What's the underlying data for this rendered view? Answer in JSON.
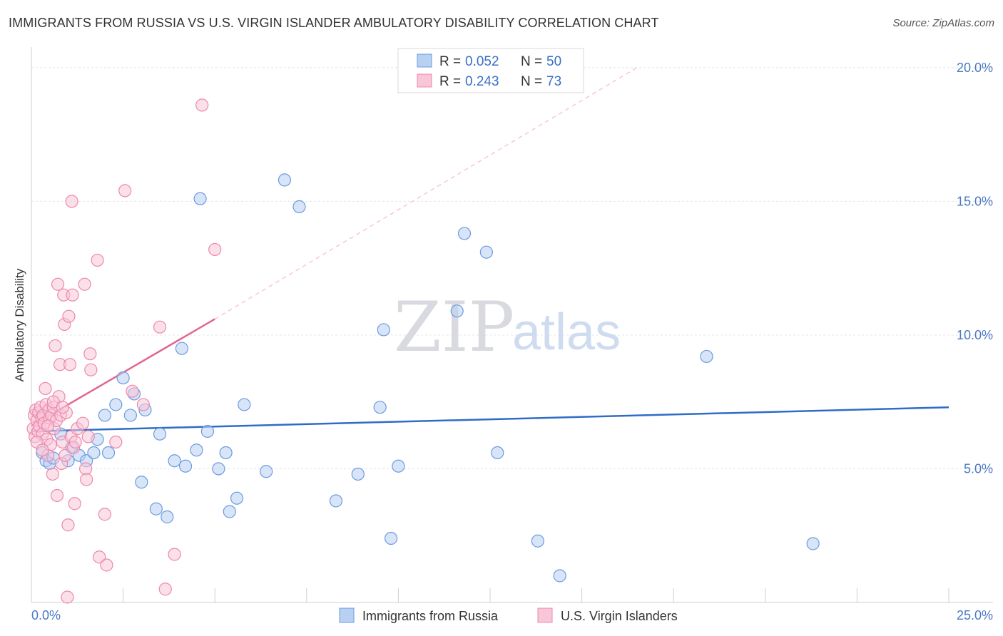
{
  "title": "IMMIGRANTS FROM RUSSIA VS U.S. VIRGIN ISLANDER AMBULATORY DISABILITY CORRELATION CHART",
  "source": "Source: ZipAtlas.com",
  "watermark": {
    "zip": "ZIP",
    "atlas": "atlas"
  },
  "chart_data": {
    "type": "scatter",
    "title": "IMMIGRANTS FROM RUSSIA VS U.S. VIRGIN ISLANDER AMBULATORY DISABILITY CORRELATION CHART",
    "xlabel": "",
    "ylabel": "Ambulatory Disability",
    "xlim": [
      0,
      25
    ],
    "ylim": [
      0,
      20
    ],
    "x_tick_labels": [
      "0.0%",
      "25.0%"
    ],
    "y_ticks": [
      5,
      10,
      15,
      20
    ],
    "y_tick_labels": [
      "5.0%",
      "10.0%",
      "15.0%",
      "20.0%"
    ],
    "grid": true,
    "legend_placement": "top-center",
    "legend": [
      {
        "r_label": "R =",
        "r_value": "0.052",
        "n_label": "N =",
        "n_value": "50"
      },
      {
        "r_label": "R =",
        "r_value": "0.243",
        "n_label": "N =",
        "n_value": "73"
      }
    ],
    "series": [
      {
        "name": "Immigrants from Russia",
        "color": "#6b9be0",
        "fill": "#b8d0f2",
        "line_color": "#2f6cc7",
        "trend": {
          "x": [
            0,
            25
          ],
          "y": [
            6.4,
            7.3
          ]
        },
        "points": [
          {
            "x": 0.3,
            "y": 5.6
          },
          {
            "x": 0.4,
            "y": 5.3
          },
          {
            "x": 0.5,
            "y": 5.2
          },
          {
            "x": 0.6,
            "y": 5.4
          },
          {
            "x": 0.8,
            "y": 6.3
          },
          {
            "x": 1.0,
            "y": 5.3
          },
          {
            "x": 1.1,
            "y": 5.8
          },
          {
            "x": 1.3,
            "y": 5.5
          },
          {
            "x": 1.5,
            "y": 5.3
          },
          {
            "x": 1.7,
            "y": 5.6
          },
          {
            "x": 1.8,
            "y": 6.1
          },
          {
            "x": 2.0,
            "y": 7.0
          },
          {
            "x": 2.1,
            "y": 5.6
          },
          {
            "x": 2.3,
            "y": 7.4
          },
          {
            "x": 2.5,
            "y": 8.4
          },
          {
            "x": 2.7,
            "y": 7.0
          },
          {
            "x": 2.8,
            "y": 7.8
          },
          {
            "x": 3.0,
            "y": 4.5
          },
          {
            "x": 3.1,
            "y": 7.2
          },
          {
            "x": 3.4,
            "y": 3.5
          },
          {
            "x": 3.5,
            "y": 6.3
          },
          {
            "x": 3.7,
            "y": 3.2
          },
          {
            "x": 3.9,
            "y": 5.3
          },
          {
            "x": 4.1,
            "y": 9.5
          },
          {
            "x": 4.2,
            "y": 5.1
          },
          {
            "x": 4.5,
            "y": 5.7
          },
          {
            "x": 4.6,
            "y": 15.1
          },
          {
            "x": 4.8,
            "y": 6.4
          },
          {
            "x": 5.1,
            "y": 5.0
          },
          {
            "x": 5.3,
            "y": 5.6
          },
          {
            "x": 5.4,
            "y": 3.4
          },
          {
            "x": 5.6,
            "y": 3.9
          },
          {
            "x": 5.8,
            "y": 7.4
          },
          {
            "x": 6.4,
            "y": 4.9
          },
          {
            "x": 6.9,
            "y": 15.8
          },
          {
            "x": 7.3,
            "y": 14.8
          },
          {
            "x": 8.3,
            "y": 3.8
          },
          {
            "x": 8.9,
            "y": 4.8
          },
          {
            "x": 9.6,
            "y": 10.2
          },
          {
            "x": 9.5,
            "y": 7.3
          },
          {
            "x": 9.8,
            "y": 2.4
          },
          {
            "x": 10.0,
            "y": 5.1
          },
          {
            "x": 11.6,
            "y": 10.9
          },
          {
            "x": 11.8,
            "y": 13.8
          },
          {
            "x": 12.4,
            "y": 13.1
          },
          {
            "x": 12.7,
            "y": 5.6
          },
          {
            "x": 13.8,
            "y": 2.3
          },
          {
            "x": 14.4,
            "y": 1.0
          },
          {
            "x": 18.4,
            "y": 9.2
          },
          {
            "x": 21.3,
            "y": 2.2
          }
        ]
      },
      {
        "name": "U.S. Virgin Islanders",
        "color": "#ec88ab",
        "fill": "#f8c6d8",
        "line_color": "#e1668f",
        "trend": {
          "x": [
            0,
            5.0
          ],
          "y": [
            6.6,
            10.6
          ]
        },
        "trend_ext": {
          "x": [
            5.0,
            16.5
          ],
          "y": [
            10.6,
            20.0
          ]
        },
        "points": [
          {
            "x": 0.05,
            "y": 6.5
          },
          {
            "x": 0.08,
            "y": 7.0
          },
          {
            "x": 0.1,
            "y": 6.2
          },
          {
            "x": 0.12,
            "y": 7.2
          },
          {
            "x": 0.15,
            "y": 6.8
          },
          {
            "x": 0.18,
            "y": 6.4
          },
          {
            "x": 0.2,
            "y": 7.1
          },
          {
            "x": 0.22,
            "y": 6.6
          },
          {
            "x": 0.25,
            "y": 7.3
          },
          {
            "x": 0.28,
            "y": 6.9
          },
          {
            "x": 0.3,
            "y": 6.3
          },
          {
            "x": 0.32,
            "y": 7.0
          },
          {
            "x": 0.35,
            "y": 6.7
          },
          {
            "x": 0.38,
            "y": 8.0
          },
          {
            "x": 0.4,
            "y": 7.4
          },
          {
            "x": 0.42,
            "y": 6.1
          },
          {
            "x": 0.45,
            "y": 5.5
          },
          {
            "x": 0.48,
            "y": 7.2
          },
          {
            "x": 0.5,
            "y": 6.9
          },
          {
            "x": 0.52,
            "y": 5.9
          },
          {
            "x": 0.55,
            "y": 7.0
          },
          {
            "x": 0.58,
            "y": 4.8
          },
          {
            "x": 0.6,
            "y": 7.3
          },
          {
            "x": 0.62,
            "y": 6.5
          },
          {
            "x": 0.65,
            "y": 9.6
          },
          {
            "x": 0.68,
            "y": 6.8
          },
          {
            "x": 0.7,
            "y": 4.0
          },
          {
            "x": 0.72,
            "y": 11.9
          },
          {
            "x": 0.75,
            "y": 7.7
          },
          {
            "x": 0.78,
            "y": 8.9
          },
          {
            "x": 0.8,
            "y": 7.0
          },
          {
            "x": 0.82,
            "y": 5.2
          },
          {
            "x": 0.85,
            "y": 6.0
          },
          {
            "x": 0.88,
            "y": 11.5
          },
          {
            "x": 0.9,
            "y": 10.4
          },
          {
            "x": 0.92,
            "y": 5.5
          },
          {
            "x": 0.95,
            "y": 7.1
          },
          {
            "x": 0.98,
            "y": 0.2
          },
          {
            "x": 1.0,
            "y": 2.9
          },
          {
            "x": 1.02,
            "y": 10.7
          },
          {
            "x": 1.05,
            "y": 8.9
          },
          {
            "x": 1.08,
            "y": 6.2
          },
          {
            "x": 1.1,
            "y": 15.0
          },
          {
            "x": 1.12,
            "y": 11.5
          },
          {
            "x": 1.15,
            "y": 5.8
          },
          {
            "x": 1.18,
            "y": 3.7
          },
          {
            "x": 1.2,
            "y": 6.0
          },
          {
            "x": 1.25,
            "y": 6.5
          },
          {
            "x": 1.4,
            "y": 6.7
          },
          {
            "x": 1.45,
            "y": 11.9
          },
          {
            "x": 1.48,
            "y": 5.0
          },
          {
            "x": 1.5,
            "y": 4.6
          },
          {
            "x": 1.55,
            "y": 6.2
          },
          {
            "x": 1.6,
            "y": 9.3
          },
          {
            "x": 1.62,
            "y": 8.7
          },
          {
            "x": 1.8,
            "y": 12.8
          },
          {
            "x": 1.85,
            "y": 1.7
          },
          {
            "x": 2.0,
            "y": 3.3
          },
          {
            "x": 2.05,
            "y": 1.4
          },
          {
            "x": 2.3,
            "y": 6.0
          },
          {
            "x": 2.55,
            "y": 15.4
          },
          {
            "x": 2.75,
            "y": 7.9
          },
          {
            "x": 3.05,
            "y": 7.4
          },
          {
            "x": 3.5,
            "y": 10.3
          },
          {
            "x": 3.65,
            "y": 0.5
          },
          {
            "x": 3.9,
            "y": 1.8
          },
          {
            "x": 4.65,
            "y": 18.6
          },
          {
            "x": 5.0,
            "y": 13.2
          },
          {
            "x": 0.15,
            "y": 6.0
          },
          {
            "x": 0.3,
            "y": 5.7
          },
          {
            "x": 0.45,
            "y": 6.6
          },
          {
            "x": 0.6,
            "y": 7.5
          },
          {
            "x": 0.85,
            "y": 7.3
          }
        ]
      }
    ]
  },
  "bottom_legend": [
    "Immigrants from Russia",
    "U.S. Virgin Islanders"
  ]
}
